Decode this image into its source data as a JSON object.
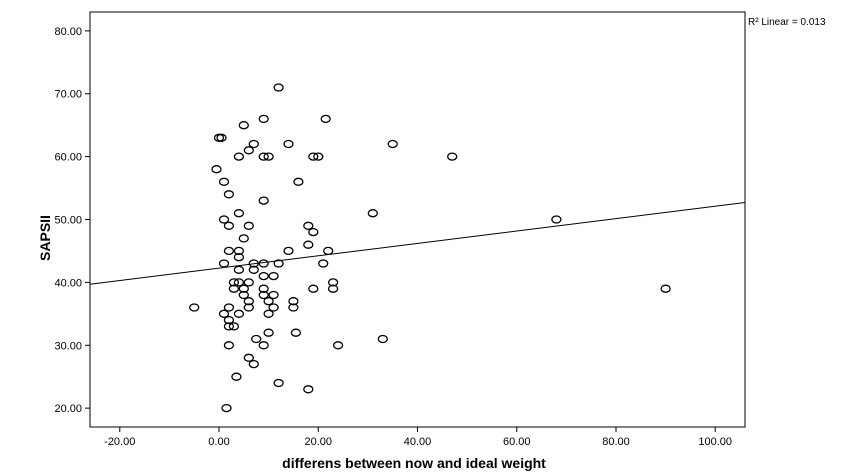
{
  "chart_data": {
    "type": "scatter",
    "title": "",
    "xlabel": "differens between now and ideal weight",
    "ylabel": "SAPSII",
    "xlim": [
      -26,
      106
    ],
    "ylim": [
      17,
      83
    ],
    "xticks": [
      -20,
      0,
      20,
      40,
      60,
      80,
      100
    ],
    "xtick_labels": [
      "-20.00",
      "0.00",
      "20.00",
      "40.00",
      "60.00",
      "80.00",
      "100.00"
    ],
    "yticks": [
      20,
      30,
      40,
      50,
      60,
      70,
      80
    ],
    "ytick_labels": [
      "20.00",
      "30.00",
      "40.00",
      "50.00",
      "60.00",
      "70.00",
      "80.00"
    ],
    "grid": false,
    "fit_line": {
      "label": "R² Linear = 0.013",
      "x": [
        -26,
        106
      ],
      "y": [
        39.7,
        52.7
      ]
    },
    "points": [
      [
        12,
        71
      ],
      [
        0,
        63
      ],
      [
        0.5,
        63
      ],
      [
        5,
        65
      ],
      [
        9,
        66
      ],
      [
        21.5,
        66
      ],
      [
        -0.5,
        58
      ],
      [
        1,
        56
      ],
      [
        2,
        54
      ],
      [
        4,
        60
      ],
      [
        6,
        61
      ],
      [
        7,
        62
      ],
      [
        9,
        60
      ],
      [
        10,
        60
      ],
      [
        14,
        62
      ],
      [
        19,
        60
      ],
      [
        20,
        60
      ],
      [
        35,
        62
      ],
      [
        47,
        60
      ],
      [
        16,
        56
      ],
      [
        4,
        51
      ],
      [
        9,
        53
      ],
      [
        31,
        51
      ],
      [
        68,
        50
      ],
      [
        1,
        50
      ],
      [
        2,
        49
      ],
      [
        6,
        49
      ],
      [
        18,
        49
      ],
      [
        19,
        48
      ],
      [
        5,
        47
      ],
      [
        18,
        46
      ],
      [
        2,
        45
      ],
      [
        4,
        45
      ],
      [
        14,
        45
      ],
      [
        22,
        45
      ],
      [
        1,
        43
      ],
      [
        4,
        44
      ],
      [
        7,
        43
      ],
      [
        9,
        43
      ],
      [
        12,
        43
      ],
      [
        21,
        43
      ],
      [
        4,
        42
      ],
      [
        7,
        42
      ],
      [
        3,
        40
      ],
      [
        4,
        40
      ],
      [
        6,
        40
      ],
      [
        9,
        41
      ],
      [
        11,
        41
      ],
      [
        23,
        40
      ],
      [
        3,
        39
      ],
      [
        5,
        39
      ],
      [
        9,
        39
      ],
      [
        19,
        39
      ],
      [
        23,
        39
      ],
      [
        90,
        39
      ],
      [
        5,
        38
      ],
      [
        9,
        38
      ],
      [
        11,
        38
      ],
      [
        10,
        37
      ],
      [
        15,
        37
      ],
      [
        -5,
        36
      ],
      [
        2,
        36
      ],
      [
        6,
        36
      ],
      [
        11,
        36
      ],
      [
        15,
        36
      ],
      [
        1,
        35
      ],
      [
        4,
        35
      ],
      [
        10,
        35
      ],
      [
        2,
        34
      ],
      [
        2,
        33
      ],
      [
        3,
        33
      ],
      [
        6,
        37
      ],
      [
        7.5,
        31
      ],
      [
        9,
        30
      ],
      [
        2,
        30
      ],
      [
        10,
        32
      ],
      [
        15.5,
        32
      ],
      [
        24,
        30
      ],
      [
        33,
        31
      ],
      [
        6,
        28
      ],
      [
        7,
        27
      ],
      [
        3.5,
        25
      ],
      [
        12,
        24
      ],
      [
        18,
        23
      ],
      [
        1.5,
        20
      ]
    ]
  }
}
